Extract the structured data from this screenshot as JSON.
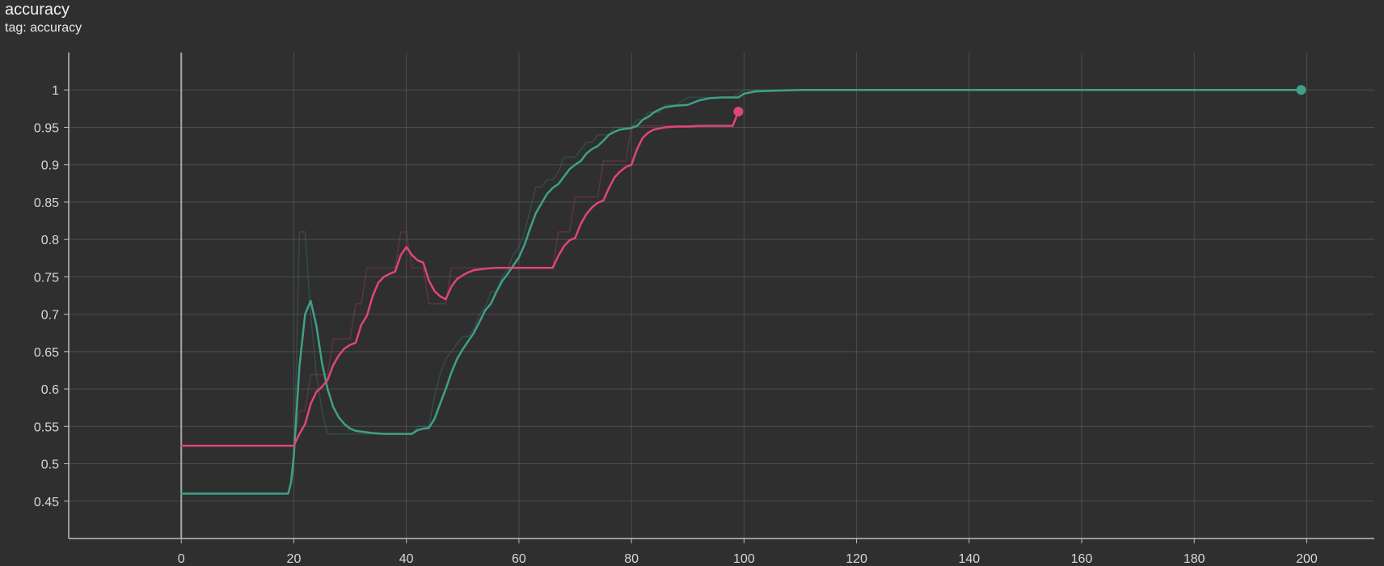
{
  "header": {
    "title": "accuracy",
    "subtitle": "tag: accuracy"
  },
  "chart_data": {
    "type": "line",
    "title": "accuracy",
    "subtitle": "tag: accuracy",
    "xlim": [
      -20,
      212
    ],
    "ylim": [
      0.4,
      1.05
    ],
    "x_ticks": [
      0,
      20,
      40,
      60,
      80,
      100,
      120,
      140,
      160,
      180,
      200
    ],
    "y_ticks": [
      0.45,
      0.5,
      0.55,
      0.6,
      0.65,
      0.7,
      0.75,
      0.8,
      0.85,
      0.9,
      0.95,
      1
    ],
    "y_tick_labels": [
      "0.45",
      "0.5",
      "0.55",
      "0.6",
      "0.65",
      "0.7",
      "0.75",
      "0.8",
      "0.85",
      "0.9",
      "0.95",
      "1"
    ],
    "grid": true,
    "colors": {
      "teal": "#3fa08a",
      "pink": "#e0457b",
      "background": "#2f2f2f",
      "grid": "#4d4d4d",
      "axis": "#bdbdbd"
    },
    "series": [
      {
        "color": "#3fa08a",
        "raw": {
          "x": [
            0,
            19,
            20,
            21,
            22,
            23,
            24,
            25,
            26,
            40,
            41,
            42,
            43,
            44,
            45,
            46,
            47,
            48,
            49,
            50,
            51,
            52,
            53,
            54,
            55,
            56,
            57,
            58,
            59,
            60,
            61,
            62,
            63,
            64,
            65,
            66,
            67,
            68,
            69,
            70,
            71,
            72,
            73,
            74,
            75,
            76,
            77,
            78,
            79,
            80,
            81,
            82,
            83,
            84,
            85,
            86,
            88,
            90,
            92,
            94,
            96,
            98,
            100,
            105,
            199
          ],
          "y": [
            0.46,
            0.46,
            0.49,
            0.81,
            0.81,
            0.7,
            0.62,
            0.57,
            0.54,
            0.54,
            0.54,
            0.55,
            0.55,
            0.55,
            0.59,
            0.62,
            0.64,
            0.65,
            0.66,
            0.67,
            0.67,
            0.68,
            0.7,
            0.71,
            0.73,
            0.73,
            0.75,
            0.76,
            0.78,
            0.79,
            0.81,
            0.84,
            0.87,
            0.87,
            0.88,
            0.88,
            0.89,
            0.91,
            0.91,
            0.91,
            0.92,
            0.93,
            0.93,
            0.94,
            0.94,
            0.94,
            0.95,
            0.95,
            0.95,
            0.95,
            0.96,
            0.96,
            0.97,
            0.97,
            0.97,
            0.98,
            0.98,
            0.99,
            0.99,
            0.99,
            0.99,
            0.99,
            1.0,
            1.0,
            1.0
          ]
        },
        "smoothed": {
          "x": [
            0,
            19,
            19.5,
            20,
            21,
            22,
            23,
            24,
            25,
            26,
            27,
            28,
            29,
            30,
            31,
            32,
            34,
            36,
            38,
            40,
            41,
            42,
            43,
            44,
            45,
            46,
            47,
            48,
            49,
            50,
            51,
            52,
            53,
            54,
            55,
            56,
            57,
            58,
            59,
            60,
            61,
            62,
            63,
            64,
            65,
            66,
            67,
            68,
            69,
            70,
            71,
            72,
            73,
            74,
            75,
            76,
            77,
            78,
            79,
            80,
            81,
            82,
            83,
            84,
            85,
            86,
            88,
            90,
            91,
            92,
            94,
            96,
            98,
            99,
            100,
            102,
            105,
            110,
            199
          ],
          "y": [
            0.46,
            0.46,
            0.475,
            0.51,
            0.63,
            0.7,
            0.718,
            0.685,
            0.635,
            0.6,
            0.576,
            0.562,
            0.553,
            0.547,
            0.544,
            0.543,
            0.541,
            0.54,
            0.54,
            0.54,
            0.54,
            0.545,
            0.547,
            0.548,
            0.56,
            0.58,
            0.6,
            0.622,
            0.64,
            0.653,
            0.664,
            0.675,
            0.69,
            0.705,
            0.714,
            0.73,
            0.744,
            0.754,
            0.765,
            0.776,
            0.793,
            0.815,
            0.835,
            0.848,
            0.861,
            0.869,
            0.874,
            0.884,
            0.894,
            0.9,
            0.905,
            0.915,
            0.921,
            0.925,
            0.932,
            0.94,
            0.944,
            0.947,
            0.948,
            0.949,
            0.952,
            0.96,
            0.964,
            0.97,
            0.974,
            0.977,
            0.979,
            0.98,
            0.983,
            0.986,
            0.989,
            0.99,
            0.99,
            0.99,
            0.995,
            0.998,
            0.999,
            1.0,
            1.0
          ]
        },
        "last_point": {
          "x": 199,
          "y": 1.0
        }
      },
      {
        "color": "#e0457b",
        "raw": {
          "x": [
            0,
            20,
            21,
            22,
            23,
            24,
            25,
            26,
            27,
            28,
            29,
            30,
            31,
            32,
            33,
            34,
            35,
            36,
            37,
            38,
            39,
            40,
            41,
            42,
            43,
            44,
            45,
            46,
            47,
            48,
            49,
            50,
            51,
            52,
            53,
            54,
            55,
            56,
            57,
            58,
            59,
            60,
            61,
            62,
            63,
            64,
            65,
            66,
            67,
            68,
            69,
            70,
            71,
            72,
            73,
            74,
            75,
            76,
            77,
            78,
            79,
            80,
            81,
            82,
            84,
            86,
            88,
            90,
            92,
            94,
            96,
            98,
            99
          ],
          "y": [
            0.524,
            0.524,
            0.571,
            0.571,
            0.619,
            0.619,
            0.619,
            0.619,
            0.667,
            0.667,
            0.667,
            0.667,
            0.714,
            0.714,
            0.762,
            0.762,
            0.762,
            0.762,
            0.762,
            0.762,
            0.81,
            0.81,
            0.762,
            0.762,
            0.762,
            0.714,
            0.714,
            0.714,
            0.714,
            0.762,
            0.762,
            0.762,
            0.762,
            0.762,
            0.762,
            0.762,
            0.762,
            0.762,
            0.762,
            0.762,
            0.762,
            0.762,
            0.762,
            0.762,
            0.762,
            0.762,
            0.762,
            0.762,
            0.81,
            0.81,
            0.81,
            0.857,
            0.857,
            0.857,
            0.857,
            0.857,
            0.905,
            0.905,
            0.905,
            0.905,
            0.905,
            0.952,
            0.952,
            0.952,
            0.952,
            0.952,
            0.952,
            0.952,
            0.952,
            0.952,
            0.952,
            0.952,
            0.971
          ]
        },
        "smoothed": {
          "x": [
            0,
            20,
            21,
            22,
            23,
            24,
            25,
            26,
            27,
            28,
            29,
            30,
            31,
            32,
            33,
            34,
            35,
            36,
            37,
            38,
            39,
            40,
            41,
            42,
            43,
            44,
            45,
            46,
            47,
            48,
            49,
            50,
            51,
            52,
            54,
            56,
            58,
            60,
            62,
            64,
            66,
            67,
            68,
            69,
            70,
            71,
            72,
            73,
            74,
            75,
            76,
            77,
            78,
            79,
            80,
            81,
            82,
            83,
            84,
            86,
            88,
            90,
            92,
            94,
            96,
            98,
            99
          ],
          "y": [
            0.524,
            0.524,
            0.54,
            0.553,
            0.58,
            0.596,
            0.603,
            0.612,
            0.632,
            0.645,
            0.654,
            0.659,
            0.662,
            0.686,
            0.698,
            0.724,
            0.742,
            0.75,
            0.754,
            0.757,
            0.779,
            0.79,
            0.779,
            0.772,
            0.769,
            0.745,
            0.731,
            0.724,
            0.72,
            0.737,
            0.747,
            0.752,
            0.756,
            0.759,
            0.761,
            0.762,
            0.762,
            0.762,
            0.762,
            0.762,
            0.762,
            0.778,
            0.791,
            0.799,
            0.802,
            0.821,
            0.834,
            0.843,
            0.849,
            0.852,
            0.869,
            0.883,
            0.891,
            0.897,
            0.9,
            0.921,
            0.936,
            0.943,
            0.947,
            0.95,
            0.951,
            0.951,
            0.952,
            0.952,
            0.952,
            0.952,
            0.971
          ]
        },
        "last_point": {
          "x": 99,
          "y": 0.971
        }
      }
    ]
  }
}
